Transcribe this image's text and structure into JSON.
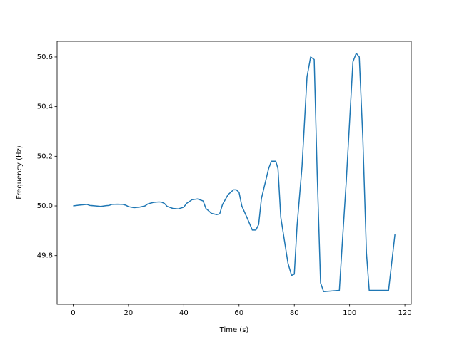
{
  "chart_data": {
    "type": "line",
    "x_label": "Time (s)",
    "y_label": "Frequency (Hz)",
    "series": [
      {
        "color": "#1f77b4",
        "x": [
          0,
          2,
          5,
          6,
          8,
          10,
          12,
          13,
          14,
          16,
          18,
          19,
          20,
          22,
          24,
          26,
          27,
          29,
          31,
          32,
          33,
          34,
          36,
          38,
          40,
          41,
          43,
          45,
          47,
          48,
          50,
          52,
          53,
          54,
          56,
          58,
          59,
          60,
          61,
          63,
          64.8,
          66.1,
          67.1,
          68.1,
          70.7,
          71.7,
          73.3,
          74.1,
          75.1,
          77.7,
          79.0,
          80.0,
          81.0,
          82.8,
          84.6,
          85.9,
          87.2,
          88.3,
          89.5,
          90.6,
          96.3,
          97.3,
          98.8,
          101.2,
          102.4,
          103.5,
          104.8,
          106.1,
          107.1,
          114.1,
          116.4
        ],
        "values": [
          50.0,
          50.003,
          50.006,
          50.002,
          50.0,
          49.998,
          50.001,
          50.002,
          50.006,
          50.007,
          50.006,
          50.003,
          49.997,
          49.993,
          49.995,
          50.0,
          50.008,
          50.014,
          50.016,
          50.015,
          50.01,
          49.998,
          49.99,
          49.988,
          49.995,
          50.01,
          50.025,
          50.028,
          50.02,
          49.99,
          49.97,
          49.965,
          49.968,
          50.005,
          50.045,
          50.065,
          50.065,
          50.055,
          50.0,
          49.95,
          49.903,
          49.903,
          49.925,
          50.03,
          50.15,
          50.18,
          50.18,
          50.15,
          49.955,
          49.77,
          49.72,
          49.725,
          49.92,
          50.16,
          50.52,
          50.6,
          50.59,
          50.125,
          49.69,
          49.655,
          49.66,
          49.84,
          50.1,
          50.58,
          50.615,
          50.6,
          50.27,
          49.81,
          49.66,
          49.66,
          49.885
        ]
      }
    ],
    "xlim": [
      -5.8,
      122.3
    ],
    "ylim": [
      49.604,
      50.663
    ],
    "xticks": [
      0,
      20,
      40,
      60,
      80,
      100,
      120
    ],
    "yticks": [
      49.8,
      {
        "value": 50.0,
        "label": "50.0"
      },
      50.2,
      50.4,
      50.6
    ]
  }
}
